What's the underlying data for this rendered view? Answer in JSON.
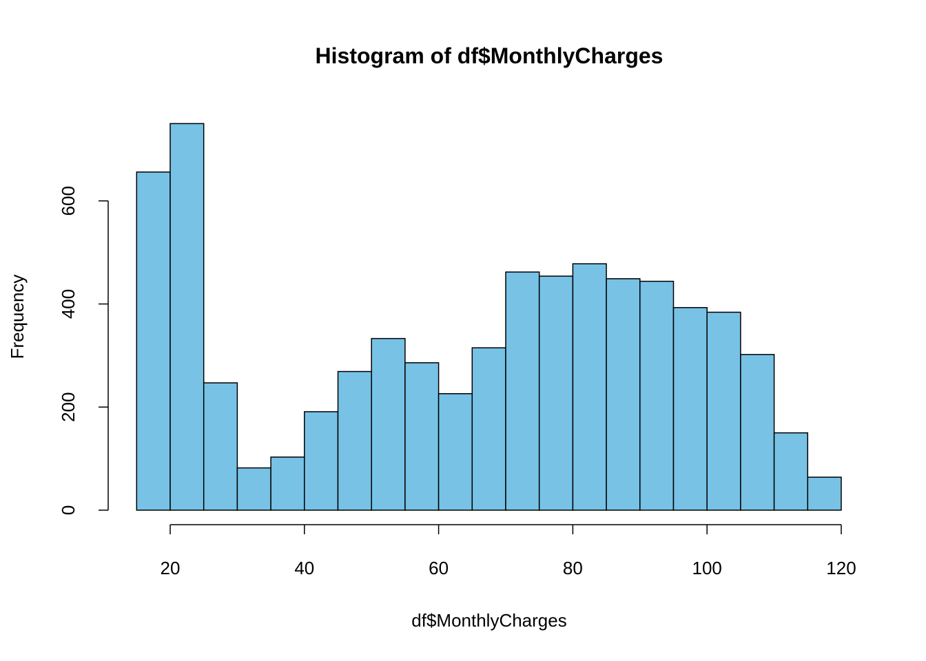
{
  "chart_data": {
    "type": "histogram",
    "title": "Histogram of df$MonthlyCharges",
    "xlabel": "df$MonthlyCharges",
    "ylabel": "Frequency",
    "bins": [
      15,
      20,
      25,
      30,
      35,
      40,
      45,
      50,
      55,
      60,
      65,
      70,
      75,
      80,
      85,
      90,
      95,
      100,
      105,
      110,
      115,
      120
    ],
    "values": [
      656,
      750,
      247,
      82,
      103,
      191,
      269,
      333,
      286,
      226,
      315,
      462,
      454,
      478,
      449,
      444,
      393,
      384,
      302,
      150,
      64
    ],
    "color": "#78c2e6",
    "xlim": [
      10.8,
      124.2
    ],
    "ylim": [
      -30,
      780
    ],
    "xticks": [
      20,
      40,
      60,
      80,
      100,
      120
    ],
    "yticks": [
      0,
      200,
      400,
      600
    ]
  }
}
